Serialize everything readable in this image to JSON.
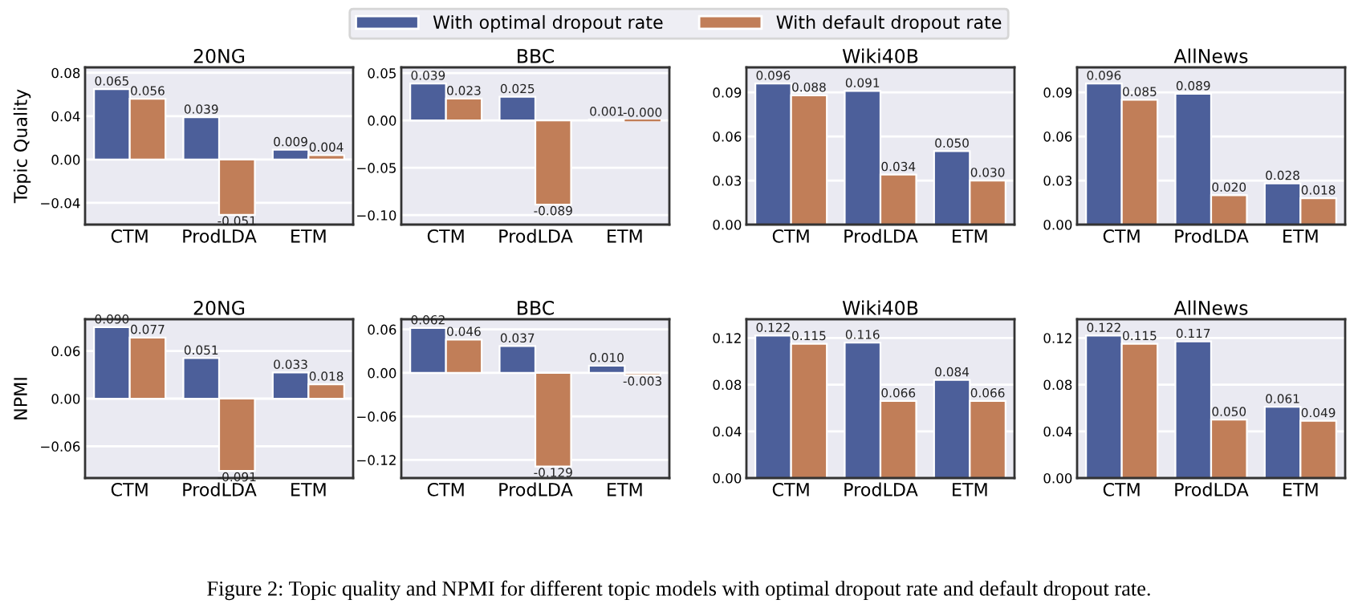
{
  "chart_data": [
    {
      "type": "bar",
      "title": "20NG",
      "ylabel": "Topic Quality",
      "categories": [
        "CTM",
        "ProdLDA",
        "ETM"
      ],
      "legend": "top",
      "series": [
        {
          "name": "With optimal dropout rate",
          "color": "#4c5f9a",
          "values": [
            0.065,
            0.039,
            0.009
          ],
          "value_labels": [
            "0.065",
            "0.039",
            "0.009"
          ]
        },
        {
          "name": "With default dropout rate",
          "color": "#c17e58",
          "values": [
            0.056,
            -0.051,
            0.004
          ],
          "value_labels": [
            "0.056",
            "-0.051",
            "0.004"
          ]
        }
      ],
      "ylim": [
        -0.06,
        0.085
      ],
      "yticks": [
        {
          "value": -0.04,
          "label": "−0.04"
        },
        {
          "value": 0,
          "label": "0.00"
        },
        {
          "value": 0.04,
          "label": "0.04"
        },
        {
          "value": 0.08,
          "label": "0.08"
        }
      ],
      "grid": "y"
    },
    {
      "type": "bar",
      "title": "BBC",
      "categories": [
        "CTM",
        "ProdLDA",
        "ETM"
      ],
      "series": [
        {
          "color": "#4c5f9a",
          "values": [
            0.039,
            0.025,
            0.001
          ],
          "value_labels": [
            "0.039",
            "0.025",
            "0.001"
          ]
        },
        {
          "color": "#c17e58",
          "values": [
            0.023,
            -0.089,
            0.0
          ],
          "value_labels": [
            "0.023",
            "-0.089",
            "-0.000"
          ]
        }
      ],
      "ylim": [
        -0.11,
        0.056
      ],
      "yticks": [
        {
          "value": -0.1,
          "label": "−0.10"
        },
        {
          "value": -0.05,
          "label": "−0.05"
        },
        {
          "value": 0,
          "label": "0.00"
        },
        {
          "value": 0.05,
          "label": "0.05"
        }
      ],
      "grid": "y"
    },
    {
      "type": "bar",
      "title": "Wiki40B",
      "categories": [
        "CTM",
        "ProdLDA",
        "ETM"
      ],
      "series": [
        {
          "color": "#4c5f9a",
          "values": [
            0.096,
            0.091,
            0.05
          ],
          "value_labels": [
            "0.096",
            "0.091",
            "0.050"
          ]
        },
        {
          "color": "#c17e58",
          "values": [
            0.088,
            0.034,
            0.03
          ],
          "value_labels": [
            "0.088",
            "0.034",
            "0.030"
          ]
        }
      ],
      "ylim": [
        0,
        0.107
      ],
      "yticks": [
        {
          "value": 0,
          "label": "0.00"
        },
        {
          "value": 0.03,
          "label": "0.03"
        },
        {
          "value": 0.06,
          "label": "0.06"
        },
        {
          "value": 0.09,
          "label": "0.09"
        }
      ],
      "grid": "y"
    },
    {
      "type": "bar",
      "title": "AllNews",
      "categories": [
        "CTM",
        "ProdLDA",
        "ETM"
      ],
      "series": [
        {
          "color": "#4c5f9a",
          "values": [
            0.096,
            0.089,
            0.028
          ],
          "value_labels": [
            "0.096",
            "0.089",
            "0.028"
          ]
        },
        {
          "color": "#c17e58",
          "values": [
            0.085,
            0.02,
            0.018
          ],
          "value_labels": [
            "0.085",
            "0.020",
            "0.018"
          ]
        }
      ],
      "ylim": [
        0,
        0.107
      ],
      "yticks": [
        {
          "value": 0,
          "label": "0.00"
        },
        {
          "value": 0.03,
          "label": "0.03"
        },
        {
          "value": 0.06,
          "label": "0.06"
        },
        {
          "value": 0.09,
          "label": "0.09"
        }
      ],
      "grid": "y"
    },
    {
      "type": "bar",
      "title": "20NG",
      "ylabel": "NPMI",
      "categories": [
        "CTM",
        "ProdLDA",
        "ETM"
      ],
      "series": [
        {
          "color": "#4c5f9a",
          "values": [
            0.09,
            0.051,
            0.033
          ],
          "value_labels": [
            "0.090",
            "0.051",
            "0.033"
          ]
        },
        {
          "color": "#c17e58",
          "values": [
            0.077,
            -0.091,
            0.018
          ],
          "value_labels": [
            "0.077",
            "-0.091",
            "0.018"
          ]
        }
      ],
      "ylim": [
        -0.1,
        0.1
      ],
      "yticks": [
        {
          "value": -0.06,
          "label": "−0.06"
        },
        {
          "value": 0,
          "label": "0.00"
        },
        {
          "value": 0.06,
          "label": "0.06"
        }
      ],
      "grid": "y"
    },
    {
      "type": "bar",
      "title": "BBC",
      "categories": [
        "CTM",
        "ProdLDA",
        "ETM"
      ],
      "series": [
        {
          "color": "#4c5f9a",
          "values": [
            0.062,
            0.037,
            0.01
          ],
          "value_labels": [
            "0.062",
            "0.037",
            "0.010"
          ]
        },
        {
          "color": "#c17e58",
          "values": [
            0.046,
            -0.129,
            -0.003
          ],
          "value_labels": [
            "0.046",
            "-0.129",
            "-0.003"
          ]
        }
      ],
      "ylim": [
        -0.145,
        0.074
      ],
      "yticks": [
        {
          "value": -0.12,
          "label": "−0.12"
        },
        {
          "value": -0.06,
          "label": "−0.06"
        },
        {
          "value": 0,
          "label": "0.00"
        },
        {
          "value": 0.06,
          "label": "0.06"
        }
      ],
      "grid": "y"
    },
    {
      "type": "bar",
      "title": "Wiki40B",
      "categories": [
        "CTM",
        "ProdLDA",
        "ETM"
      ],
      "series": [
        {
          "color": "#4c5f9a",
          "values": [
            0.122,
            0.116,
            0.084
          ],
          "value_labels": [
            "0.122",
            "0.116",
            "0.084"
          ]
        },
        {
          "color": "#c17e58",
          "values": [
            0.115,
            0.066,
            0.066
          ],
          "value_labels": [
            "0.115",
            "0.066",
            "0.066"
          ]
        }
      ],
      "ylim": [
        0,
        0.136
      ],
      "yticks": [
        {
          "value": 0,
          "label": "0.00"
        },
        {
          "value": 0.04,
          "label": "0.04"
        },
        {
          "value": 0.08,
          "label": "0.08"
        },
        {
          "value": 0.12,
          "label": "0.12"
        }
      ],
      "grid": "y"
    },
    {
      "type": "bar",
      "title": "AllNews",
      "categories": [
        "CTM",
        "ProdLDA",
        "ETM"
      ],
      "series": [
        {
          "color": "#4c5f9a",
          "values": [
            0.122,
            0.117,
            0.061
          ],
          "value_labels": [
            "0.122",
            "0.117",
            "0.061"
          ]
        },
        {
          "color": "#c17e58",
          "values": [
            0.115,
            0.05,
            0.049
          ],
          "value_labels": [
            "0.115",
            "0.050",
            "0.049"
          ]
        }
      ],
      "ylim": [
        0,
        0.136
      ],
      "yticks": [
        {
          "value": 0,
          "label": "0.00"
        },
        {
          "value": 0.04,
          "label": "0.04"
        },
        {
          "value": 0.08,
          "label": "0.08"
        },
        {
          "value": 0.12,
          "label": "0.12"
        }
      ],
      "grid": "y",
      "annotations": [
        "Figure 2: Topic quality and NPMI for different topic models with optimal dropout rate and default dropout rate."
      ]
    }
  ]
}
